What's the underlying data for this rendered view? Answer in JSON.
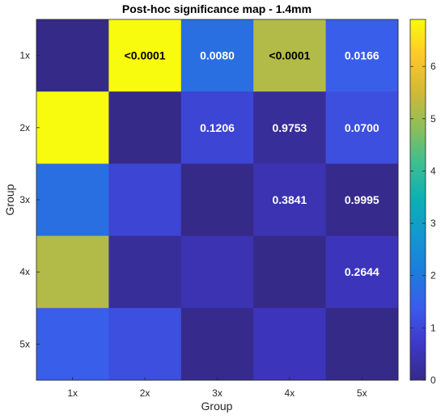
{
  "chart_data": {
    "type": "heatmap",
    "title": "Post-hoc significance map - 1.4mm",
    "xlabel": "Group",
    "ylabel": "Group",
    "x_categories": [
      "1x",
      "2x",
      "3x",
      "4x",
      "5x"
    ],
    "y_categories": [
      "1x",
      "2x",
      "3x",
      "4x",
      "5x"
    ],
    "values": [
      [
        0.0,
        6.9,
        1.8,
        5.2,
        1.45
      ],
      [
        6.9,
        0.0,
        0.95,
        0.2,
        1.15
      ],
      [
        1.8,
        0.95,
        0.0,
        0.45,
        0.05
      ],
      [
        5.2,
        0.2,
        0.45,
        0.0,
        0.55
      ],
      [
        1.45,
        1.15,
        0.05,
        0.55,
        0.0
      ]
    ],
    "cell_labels": [
      [
        "",
        "<0.0001",
        "0.0080",
        "<0.0001",
        "0.0166"
      ],
      [
        "",
        "",
        "0.1206",
        "0.9753",
        "0.0700"
      ],
      [
        "",
        "",
        "",
        "0.3841",
        "0.9995"
      ],
      [
        "",
        "",
        "",
        "",
        "0.2644"
      ],
      [
        "",
        "",
        "",
        "",
        ""
      ]
    ],
    "colorbar": {
      "min": 0,
      "max": 6.9,
      "ticks": [
        0,
        1,
        2,
        3,
        4,
        5,
        6
      ]
    },
    "colormap": "parula",
    "grid": false
  }
}
